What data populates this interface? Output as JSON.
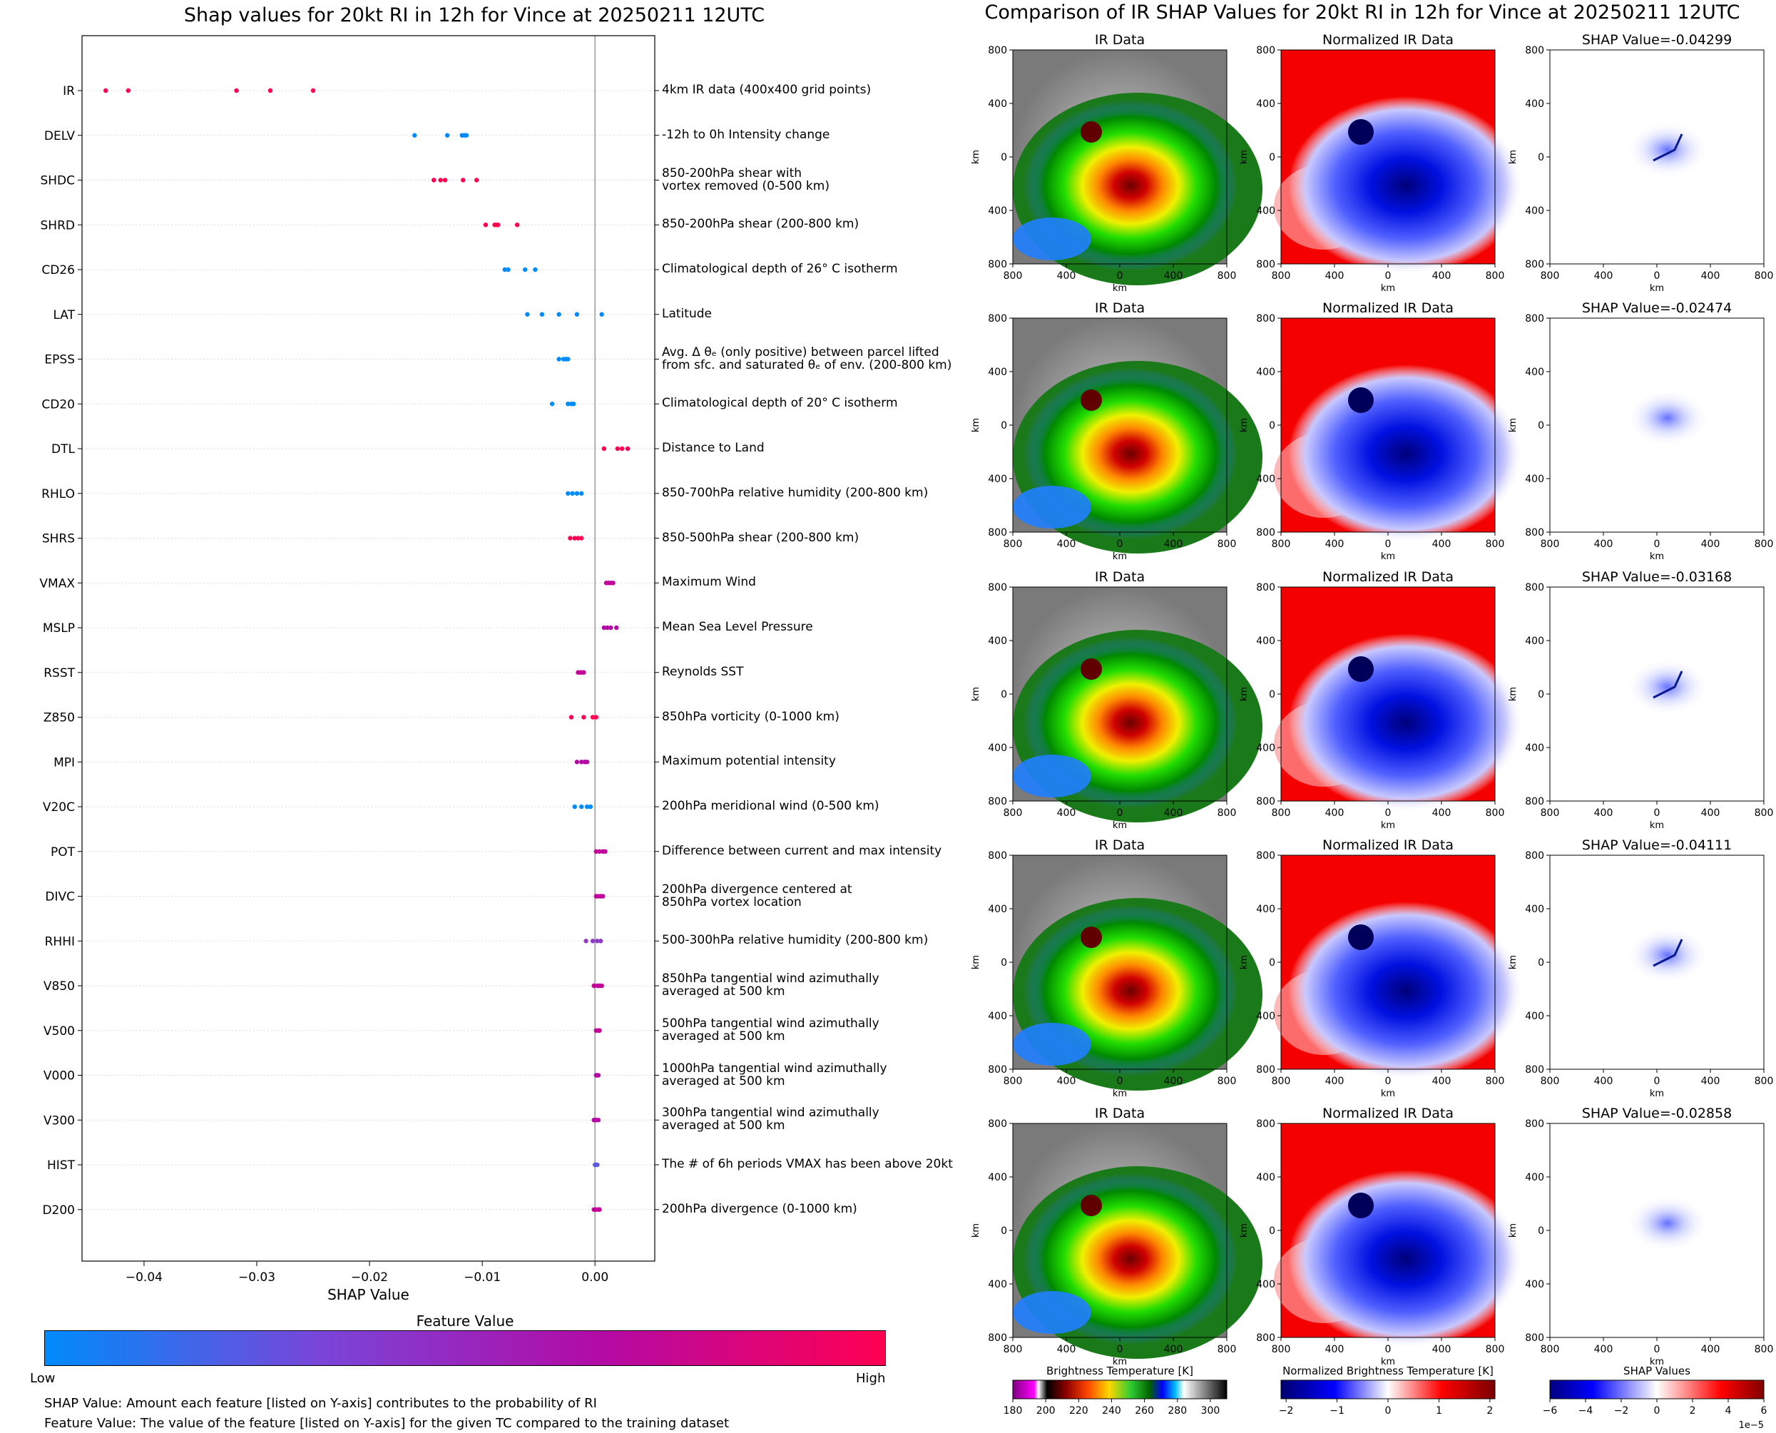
{
  "left_title": "Shap values for 20kt RI in 12h for Vince at 20250211 12UTC",
  "right_title": "Comparison of IR SHAP Values for 20kt RI in 12h for Vince at 20250211 12UTC",
  "chart_data": [
    {
      "type": "scatter",
      "title": "Shap values for 20kt RI in 12h for Vince at 20250211 12UTC",
      "xlabel": "SHAP Value",
      "xlim": [
        -0.0455,
        0.0053
      ],
      "xticks": [
        -0.04,
        -0.03,
        -0.02,
        -0.01,
        0.0
      ],
      "xtick_labels": [
        "−0.04",
        "−0.03",
        "−0.02",
        "−0.01",
        "0.00"
      ],
      "zero_line": true,
      "colorbar": {
        "title": "Feature Value",
        "low_label": "Low",
        "high_label": "High",
        "colors": [
          "#008bfb",
          "#7b44d8",
          "#b40aa4",
          "#ff0052"
        ]
      },
      "features": [
        {
          "name": "IR",
          "desc": "4km IR data (400x400 grid points)",
          "values": [
            -0.0434,
            -0.0414,
            -0.0318,
            -0.0288,
            -0.025
          ],
          "color": "#ff0052"
        },
        {
          "name": "DELV",
          "desc": "-12h to 0h Intensity change",
          "values": [
            -0.016,
            -0.0131,
            -0.0118,
            -0.0116,
            -0.0114
          ],
          "color": "#008bfb"
        },
        {
          "name": "SHDC",
          "desc": "850-200hPa shear with\nvortex removed (0-500 km)",
          "values": [
            -0.0143,
            -0.0137,
            -0.0133,
            -0.0117,
            -0.0105
          ],
          "color": "#ff0052"
        },
        {
          "name": "SHRD",
          "desc": "850-200hPa shear (200-800 km)",
          "values": [
            -0.0097,
            -0.0089,
            -0.0087,
            -0.0086,
            -0.0069
          ],
          "color": "#ff0052"
        },
        {
          "name": "CD26",
          "desc": "Climatological depth of 26° C isotherm",
          "values": [
            -0.008,
            -0.0077,
            -0.0062,
            -0.0053
          ],
          "color": "#008bfb"
        },
        {
          "name": "LAT",
          "desc": "Latitude",
          "values": [
            -0.006,
            -0.0047,
            -0.0032,
            -0.0016,
            0.0006
          ],
          "color": "#008bfb"
        },
        {
          "name": "EPSS",
          "desc": "Avg. Δ θₑ (only positive) between parcel lifted\nfrom sfc. and saturated θₑ of env. (200-800 km)",
          "values": [
            -0.0032,
            -0.0028,
            -0.0026,
            -0.0024
          ],
          "color": "#008bfb"
        },
        {
          "name": "CD20",
          "desc": "Climatological depth of 20° C isotherm",
          "values": [
            -0.0038,
            -0.0024,
            -0.0021,
            -0.0019
          ],
          "color": "#008bfb"
        },
        {
          "name": "DTL",
          "desc": "Distance to Land",
          "values": [
            0.0008,
            0.002,
            0.0024,
            0.0029
          ],
          "color": "#ff0052"
        },
        {
          "name": "RHLO",
          "desc": "850-700hPa relative humidity (200-800 km)",
          "values": [
            -0.0024,
            -0.002,
            -0.0016,
            -0.0012
          ],
          "color": "#008bfb"
        },
        {
          "name": "SHRS",
          "desc": "850-500hPa shear (200-800 km)",
          "values": [
            -0.0022,
            -0.0018,
            -0.0015,
            -0.0012
          ],
          "color": "#ff0052"
        },
        {
          "name": "VMAX",
          "desc": "Maximum Wind",
          "values": [
            0.001,
            0.0012,
            0.0014,
            0.0016
          ],
          "color": "#c3029a"
        },
        {
          "name": "MSLP",
          "desc": "Mean Sea Level Pressure",
          "values": [
            0.0008,
            0.0011,
            0.0014,
            0.0019
          ],
          "color": "#b40aa4"
        },
        {
          "name": "RSST",
          "desc": "Reynolds SST",
          "values": [
            -0.0015,
            -0.0013,
            -0.0012,
            -0.001
          ],
          "color": "#c3029a"
        },
        {
          "name": "Z850",
          "desc": "850hPa vorticity (0-1000 km)",
          "values": [
            -0.0021,
            -0.001,
            -0.0002,
            0.0001
          ],
          "color": "#ff0052"
        },
        {
          "name": "MPI",
          "desc": "Maximum potential intensity",
          "values": [
            -0.0016,
            -0.0012,
            -0.0009,
            -0.0007
          ],
          "color": "#b40aa4"
        },
        {
          "name": "V20C",
          "desc": "200hPa meridional wind (0-500 km)",
          "values": [
            -0.0018,
            -0.0012,
            -0.0007,
            -0.0004
          ],
          "color": "#008bfb"
        },
        {
          "name": "POT",
          "desc": "Difference between current and max intensity",
          "values": [
            0.0001,
            0.0004,
            0.0007,
            0.0009
          ],
          "color": "#c3029a"
        },
        {
          "name": "DIVC",
          "desc": "200hPa divergence centered at\n850hPa vortex location",
          "values": [
            0.0001,
            0.0003,
            0.0005,
            0.0007
          ],
          "color": "#c3029a"
        },
        {
          "name": "RHHI",
          "desc": "500-300hPa relative humidity (200-800 km)",
          "values": [
            -0.0008,
            -0.0002,
            0.0002,
            0.0005
          ],
          "color": "#8e3cc6"
        },
        {
          "name": "V850",
          "desc": "850hPa tangential wind azimuthally\naveraged at 500 km",
          "values": [
            -0.0001,
            0.0002,
            0.0004,
            0.0006
          ],
          "color": "#c3029a"
        },
        {
          "name": "V500",
          "desc": "500hPa tangential wind azimuthally\naveraged at 500 km",
          "values": [
            0.0001,
            0.0003,
            0.0004
          ],
          "color": "#c3029a"
        },
        {
          "name": "V000",
          "desc": "1000hPa tangential wind azimuthally\naveraged at 500 km",
          "values": [
            0.0001,
            0.0002,
            0.0003
          ],
          "color": "#b40aa4"
        },
        {
          "name": "V300",
          "desc": "300hPa tangential wind azimuthally\naveraged at 500 km",
          "values": [
            -0.0001,
            0.0001,
            0.0003
          ],
          "color": "#b40aa4"
        },
        {
          "name": "HIST",
          "desc": "The # of 6h periods VMAX has been above 20kt",
          "values": [
            0.0,
            0.0001,
            0.0002
          ],
          "color": "#5b59e6"
        },
        {
          "name": "D200",
          "desc": "200hPa divergence (0-1000 km)",
          "values": [
            -0.0001,
            0.0001,
            0.0003,
            0.0004
          ],
          "color": "#c3029a"
        }
      ],
      "notes": [
        "SHAP Value: Amount each feature [listed on Y-axis] contributes to the probability of RI",
        "Feature Value: The value of the feature [listed on Y-axis] for the given TC compared to the training dataset"
      ]
    },
    {
      "type": "heatmap",
      "title": "Comparison of IR SHAP Values for 20kt RI in 12h for Vince at 20250211 12UTC",
      "column_titles": [
        "IR Data",
        "Normalized IR Data"
      ],
      "shap_titles": [
        "SHAP Value=-0.04299",
        "SHAP Value=-0.02474",
        "SHAP Value=-0.03168",
        "SHAP Value=-0.04111",
        "SHAP Value=-0.02858"
      ],
      "axis_unit": "km",
      "tick_labels": [
        "800",
        "400",
        "0",
        "400",
        "800"
      ],
      "colorbars": [
        {
          "label": "Brightness Temperature [K]",
          "ticks": [
            "180",
            "200",
            "220",
            "240",
            "260",
            "280",
            "300"
          ],
          "range": [
            180,
            310
          ]
        },
        {
          "label": "Normalized Brightness Temperature [K]",
          "ticks": [
            "−2",
            "−1",
            "0",
            "1",
            "2"
          ],
          "range": [
            -2.1,
            2.1
          ]
        },
        {
          "label": "SHAP Values",
          "ticks": [
            "−6",
            "−4",
            "−2",
            "0",
            "2",
            "4",
            "6"
          ],
          "range": [
            -6,
            6
          ],
          "offset": "1e−5"
        }
      ]
    }
  ]
}
